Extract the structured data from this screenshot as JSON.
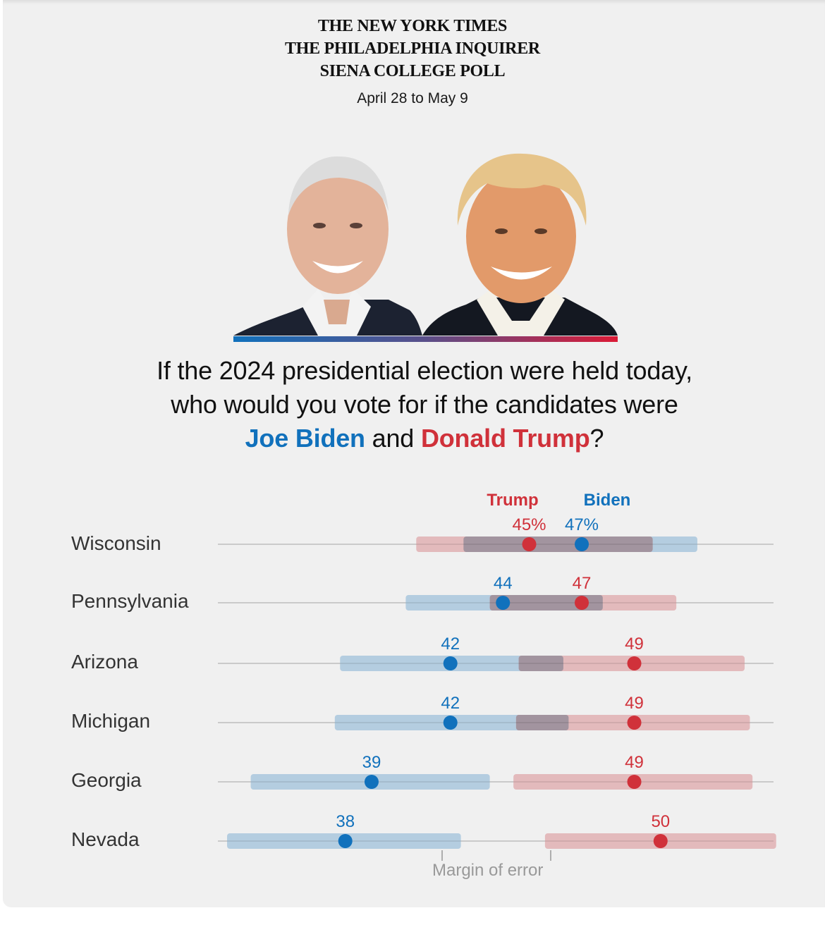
{
  "header": {
    "lines": [
      "THE NEW YORK TIMES",
      "THE PHILADELPHIA INQUIRER",
      "SIENA COLLEGE POLL"
    ],
    "date": "April 28 to May 9"
  },
  "question": {
    "line1": "If the 2024 presidential election were held today,",
    "line2": "who would you vote for if the candidates were",
    "biden_name": "Joe Biden",
    "and": " and ",
    "trump_name": "Donald Trump",
    "qmark": "?"
  },
  "colors": {
    "biden": "#1171bc",
    "trump": "#d0313a",
    "biden_band": "#b0cade",
    "trump_band": "#e2b6b8",
    "overlap_band": "#a2949f",
    "gridline": "#dcdcdc"
  },
  "annotation": {
    "margin_of_error": "Margin of error"
  },
  "chart_data": {
    "type": "scatter",
    "subtype": "dot plot with margin-of-error bands",
    "title": "If the 2024 presidential election were held today, who would you vote for if the candidates were Joe Biden and Donald Trump?",
    "xlabel": "",
    "ylabel": "",
    "xlim": [
      33.15,
      54.3
    ],
    "grid": true,
    "legend": {
      "placement": "top",
      "entries": [
        {
          "name": "Trump",
          "color": "#d0313a"
        },
        {
          "name": "Biden",
          "color": "#1171bc"
        }
      ]
    },
    "categories": [
      "Wisconsin",
      "Pennsylvania",
      "Arizona",
      "Michigan",
      "Georgia",
      "Nevada"
    ],
    "series": [
      {
        "name": "Biden",
        "values": [
          47,
          44,
          42,
          42,
          39,
          38
        ],
        "labels": [
          "47%",
          "44",
          "42",
          "42",
          "39",
          "38"
        ],
        "ranges": [
          [
            42.5,
            51.4
          ],
          [
            40.3,
            47.8
          ],
          [
            37.8,
            46.3
          ],
          [
            37.6,
            46.5
          ],
          [
            34.4,
            43.5
          ],
          [
            33.5,
            42.4
          ]
        ]
      },
      {
        "name": "Trump",
        "values": [
          45,
          47,
          49,
          49,
          49,
          50
        ],
        "labels": [
          "45%",
          "47",
          "49",
          "49",
          "49",
          "50"
        ],
        "ranges": [
          [
            40.7,
            49.7
          ],
          [
            43.5,
            50.6
          ],
          [
            44.6,
            53.2
          ],
          [
            44.5,
            53.4
          ],
          [
            44.4,
            53.5
          ],
          [
            45.6,
            54.4
          ]
        ]
      }
    ],
    "annotations": [
      "Margin of error"
    ]
  }
}
